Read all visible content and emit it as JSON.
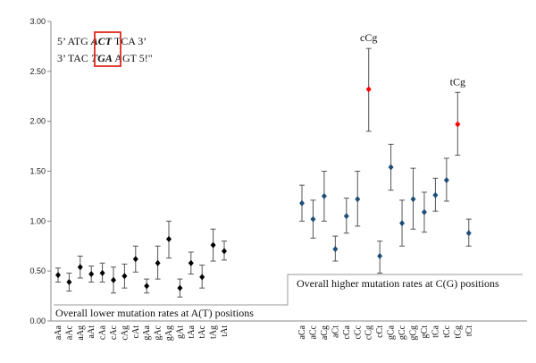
{
  "chart_data": {
    "type": "scatter",
    "title": "",
    "xlabel": "",
    "ylabel": "",
    "ylim": [
      0,
      3
    ],
    "yticks": [
      "0.00",
      "0.50",
      "1.00",
      "1.50",
      "2.00",
      "2.50",
      "3.00"
    ],
    "grid": false,
    "categories": [
      "aAa",
      "aAc",
      "aAg",
      "aAt",
      "cAa",
      "cAc",
      "cAg",
      "cAt",
      "gAa",
      "gAc",
      "gAg",
      "gAt",
      "tAa",
      "tAc",
      "tAg",
      "tAt",
      "aCa",
      "aCc",
      "aCg",
      "aCt",
      "cCa",
      "cCc",
      "cCg",
      "cCt",
      "gCa",
      "gCc",
      "gCg",
      "gCt",
      "tCa",
      "tCc",
      "tCg",
      "tCt"
    ],
    "series": [
      {
        "color": "#000000",
        "x": [
          "aAa",
          "aAc",
          "aAg",
          "aAt",
          "cAa",
          "cAc",
          "cAg",
          "cAt",
          "gAa",
          "gAc",
          "gAg",
          "gAt",
          "tAa",
          "tAc",
          "tAg",
          "tAt"
        ],
        "values": [
          0.46,
          0.39,
          0.54,
          0.47,
          0.48,
          0.41,
          0.45,
          0.62,
          0.35,
          0.58,
          0.82,
          0.33,
          0.58,
          0.44,
          0.76,
          0.7
        ],
        "err_low": [
          0.39,
          0.3,
          0.43,
          0.39,
          0.39,
          0.28,
          0.33,
          0.49,
          0.28,
          0.42,
          0.63,
          0.24,
          0.47,
          0.33,
          0.6,
          0.61
        ],
        "err_high": [
          0.53,
          0.48,
          0.65,
          0.55,
          0.58,
          0.54,
          0.57,
          0.75,
          0.42,
          0.75,
          1.0,
          0.42,
          0.69,
          0.56,
          0.92,
          0.8
        ]
      },
      {
        "color": "#1f4e79",
        "x": [
          "aCa",
          "aCc",
          "aCg",
          "aCt",
          "cCa",
          "cCc",
          "cCt",
          "gCa",
          "gCc",
          "gCg",
          "gCt",
          "tCa",
          "tCc",
          "tCt"
        ],
        "values": [
          1.18,
          1.02,
          1.25,
          0.72,
          1.05,
          1.22,
          0.65,
          1.54,
          0.98,
          1.22,
          1.09,
          1.26,
          1.41,
          0.88
        ],
        "err_low": [
          1.0,
          0.83,
          1.0,
          0.6,
          0.88,
          0.95,
          0.48,
          1.31,
          0.75,
          0.92,
          0.89,
          1.1,
          1.2,
          0.75
        ],
        "err_high": [
          1.36,
          1.21,
          1.5,
          0.85,
          1.23,
          1.5,
          0.8,
          1.77,
          1.21,
          1.53,
          1.29,
          1.43,
          1.63,
          1.02
        ]
      },
      {
        "color": "#ff0000",
        "x": [
          "cCg",
          "tCg"
        ],
        "values": [
          2.32,
          1.97
        ],
        "err_low": [
          1.9,
          1.66
        ],
        "err_high": [
          2.73,
          2.29
        ]
      }
    ],
    "annotations": [
      {
        "text": "cCg",
        "target": "cCg"
      },
      {
        "text": "tCg",
        "target": "tCg"
      }
    ],
    "region_labels": [
      {
        "text": "Overall lower mutation rates at A(T) positions"
      },
      {
        "text": "Overall higher mutation rates at C(G) positions"
      }
    ],
    "sequence_box": {
      "line1_prefix": "5’ ATG ",
      "line1_boxed": "ACT",
      "line1_suffix": " TCA 3’",
      "line2_prefix": "3’ TAC ",
      "line2_boxed": "TGA",
      "line2_suffix": " AGT 5!\"",
      "box_color": "#e0281e"
    }
  }
}
